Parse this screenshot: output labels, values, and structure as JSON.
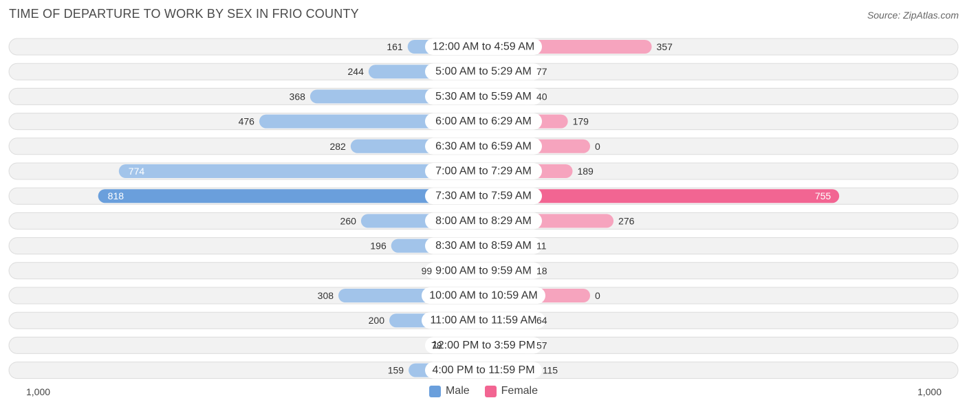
{
  "title": "TIME OF DEPARTURE TO WORK BY SEX IN FRIO COUNTY",
  "source": "Source: ZipAtlas.com",
  "axis": {
    "left_label": "1,000",
    "right_label": "1,000"
  },
  "legend": [
    {
      "label": "Male",
      "color": "#6a9fdc"
    },
    {
      "label": "Female",
      "color": "#f26592"
    }
  ],
  "chart_data": {
    "type": "bar",
    "orientation": "horizontal-diverging",
    "title": "TIME OF DEPARTURE TO WORK BY SEX IN FRIO COUNTY",
    "xlim": [
      -1000,
      1000
    ],
    "categories": [
      "12:00 AM to 4:59 AM",
      "5:00 AM to 5:29 AM",
      "5:30 AM to 5:59 AM",
      "6:00 AM to 6:29 AM",
      "6:30 AM to 6:59 AM",
      "7:00 AM to 7:29 AM",
      "7:30 AM to 7:59 AM",
      "8:00 AM to 8:29 AM",
      "8:30 AM to 8:59 AM",
      "9:00 AM to 9:59 AM",
      "10:00 AM to 10:59 AM",
      "11:00 AM to 11:59 AM",
      "12:00 PM to 3:59 PM",
      "4:00 PM to 11:59 PM"
    ],
    "series": [
      {
        "name": "Male",
        "color": "#6a9fdc",
        "light_color": "#a2c4ea",
        "values": [
          161,
          244,
          368,
          476,
          282,
          774,
          818,
          260,
          196,
          99,
          308,
          200,
          78,
          159
        ]
      },
      {
        "name": "Female",
        "color": "#f26592",
        "light_color": "#f6a4be",
        "values": [
          357,
          77,
          40,
          179,
          0,
          189,
          755,
          276,
          11,
          18,
          0,
          64,
          57,
          115
        ]
      }
    ]
  }
}
